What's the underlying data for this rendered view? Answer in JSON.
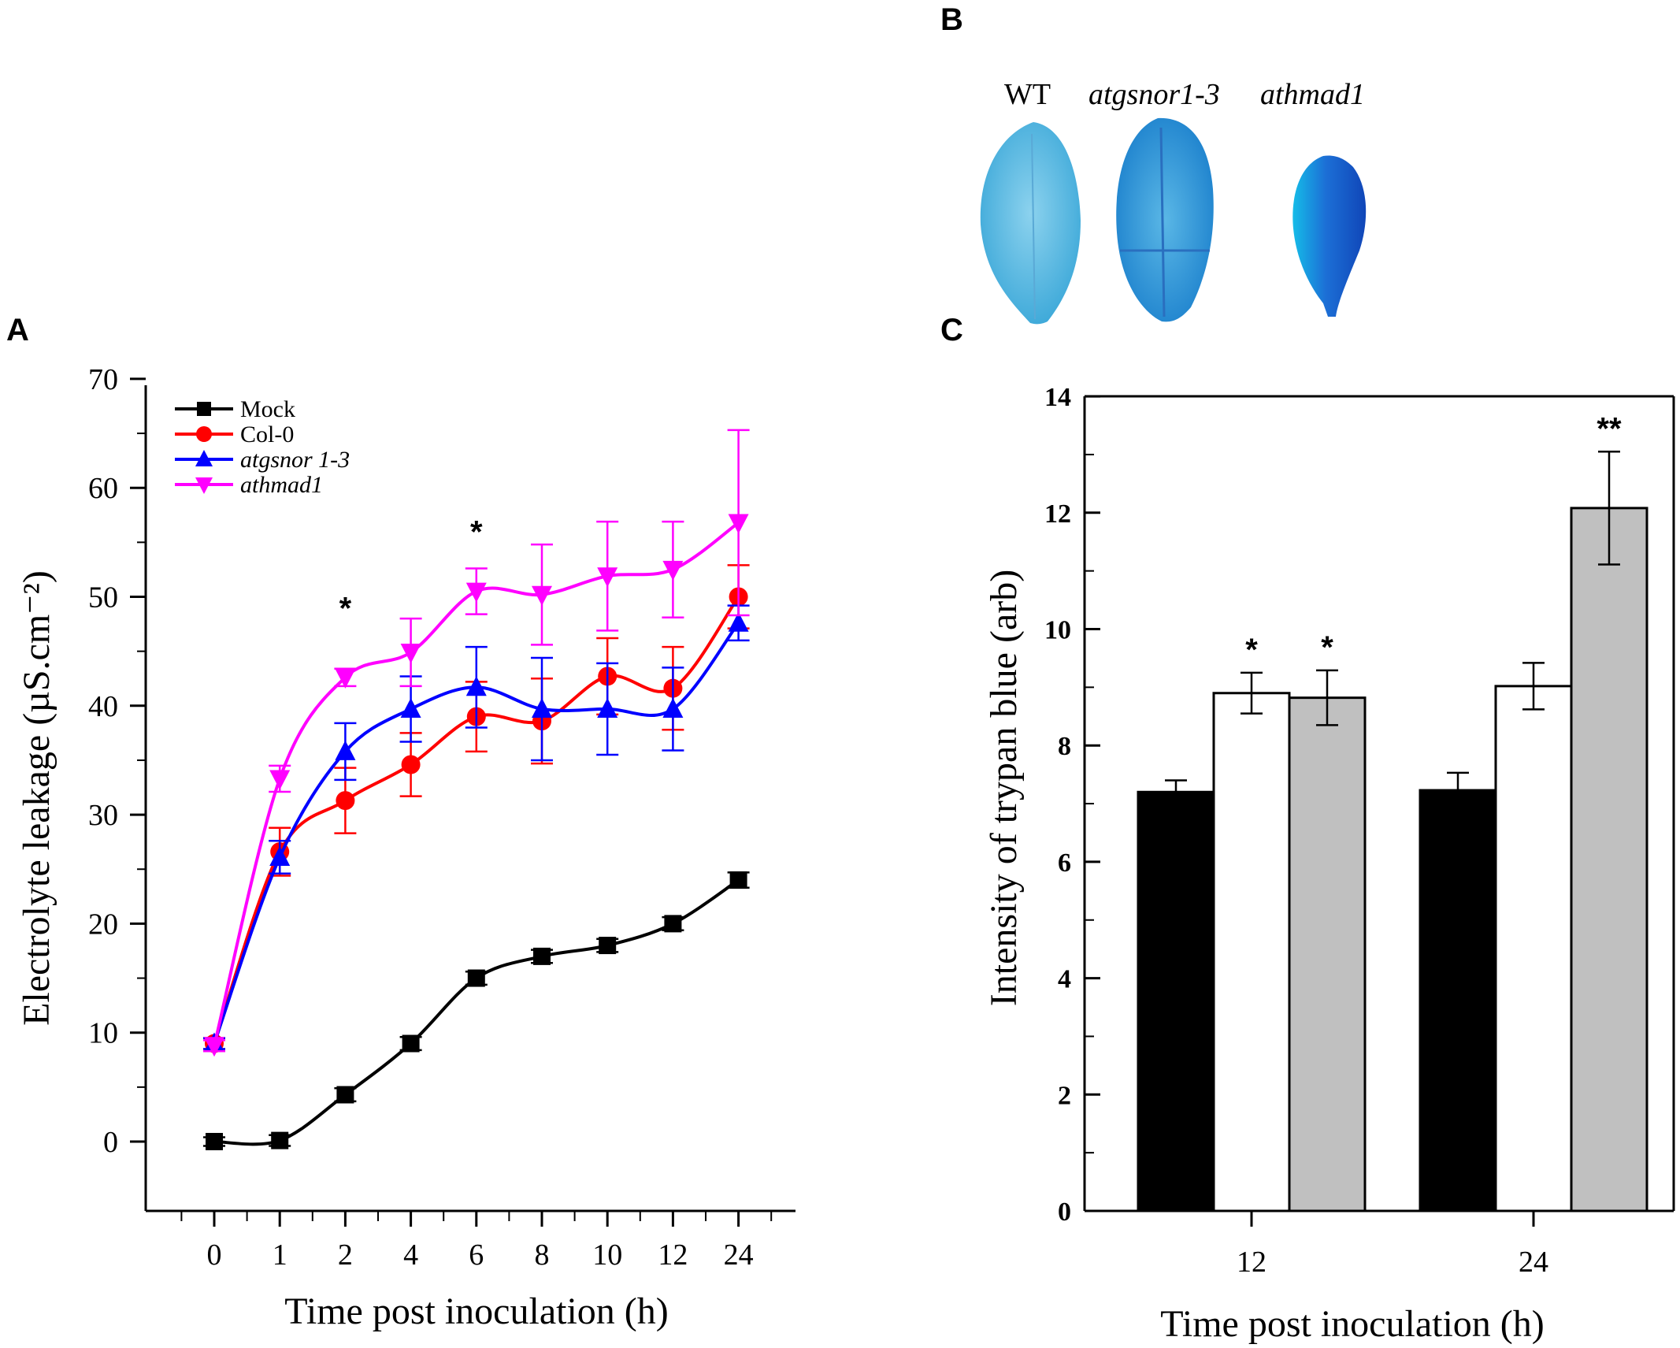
{
  "panels": {
    "a": "A",
    "b": "B",
    "c": "C"
  },
  "leaves": {
    "labels": [
      "WT",
      "atgsnor1-3",
      "athmad1"
    ],
    "italic": [
      false,
      true,
      true
    ]
  },
  "colors": {
    "mock": "#000000",
    "col0": "#ff0000",
    "atgsnor": "#0000ff",
    "athmad": "#ff00ff",
    "bar_col0": "#000000",
    "bar_atgsnor": "#ffffff",
    "bar_athmad": "#c0c0c0"
  },
  "chart_data": [
    {
      "type": "line",
      "panel": "A",
      "xlabel": "Time post inoculation (h)",
      "ylabel": "Electrolyte leakage (µS.cm⁻²)",
      "categories": [
        "0",
        "1",
        "2",
        "4",
        "6",
        "8",
        "10",
        "12",
        "24"
      ],
      "ylim": [
        -5,
        70
      ],
      "yticks": [
        0,
        10,
        20,
        30,
        40,
        50,
        60,
        70
      ],
      "legend_position": "top-left",
      "series": [
        {
          "name": "Mock",
          "key": "mock",
          "marker": "square",
          "values": [
            0,
            0.1,
            4.3,
            9.0,
            15.0,
            17.0,
            18.0,
            20.0,
            24.0
          ],
          "errors": [
            0.4,
            0.5,
            0.6,
            0.6,
            0.6,
            0.6,
            0.6,
            0.6,
            0.7
          ]
        },
        {
          "name": "Col-0",
          "key": "col0",
          "marker": "circle",
          "values": [
            9.0,
            26.6,
            31.3,
            34.6,
            39.0,
            38.6,
            42.7,
            41.6,
            50.0
          ],
          "errors": [
            0.5,
            2.2,
            3.0,
            2.9,
            3.2,
            3.9,
            3.5,
            3.8,
            2.9
          ]
        },
        {
          "name": "atgsnor 1-3",
          "key": "atgsnor",
          "marker": "triangle-up",
          "values": [
            9.0,
            26.1,
            35.8,
            39.7,
            41.7,
            39.7,
            39.7,
            39.7,
            47.6
          ],
          "errors": [
            0.5,
            1.5,
            2.6,
            3.0,
            3.7,
            4.7,
            4.2,
            3.8,
            1.6
          ]
        },
        {
          "name": "athmad1",
          "key": "athmad",
          "marker": "triangle-down",
          "values": [
            8.8,
            33.3,
            42.6,
            44.9,
            50.5,
            50.2,
            51.9,
            52.5,
            56.8
          ],
          "errors": [
            0.5,
            1.2,
            0.8,
            3.1,
            2.1,
            4.6,
            5.0,
            4.4,
            8.5
          ]
        }
      ],
      "annotations": [
        {
          "category": "2",
          "y": 49,
          "text": "*"
        },
        {
          "category": "6",
          "y": 56,
          "text": "*"
        }
      ]
    },
    {
      "type": "bar",
      "panel": "C",
      "xlabel": "Time post inoculation (h)",
      "ylabel": "Intensity of trypan blue (arb)",
      "categories": [
        "12",
        "24"
      ],
      "ylim": [
        0,
        14
      ],
      "yticks": [
        0,
        2,
        4,
        6,
        8,
        10,
        12,
        14
      ],
      "series": [
        {
          "name": "Col-0",
          "key": "bar_col0",
          "values": [
            7.2,
            7.23
          ],
          "errors": [
            0.2,
            0.3
          ]
        },
        {
          "name": "atgsnor 1-3",
          "key": "bar_atgsnor",
          "values": [
            8.9,
            9.02
          ],
          "errors": [
            0.35,
            0.4
          ]
        },
        {
          "name": "athmad1",
          "key": "bar_athmad",
          "values": [
            8.82,
            12.08
          ],
          "errors": [
            0.47,
            0.97
          ]
        }
      ],
      "annotations": [
        {
          "category": "12",
          "series": 1,
          "text": "*"
        },
        {
          "category": "12",
          "series": 2,
          "text": "*"
        },
        {
          "category": "24",
          "series": 2,
          "text": "**"
        }
      ]
    }
  ]
}
